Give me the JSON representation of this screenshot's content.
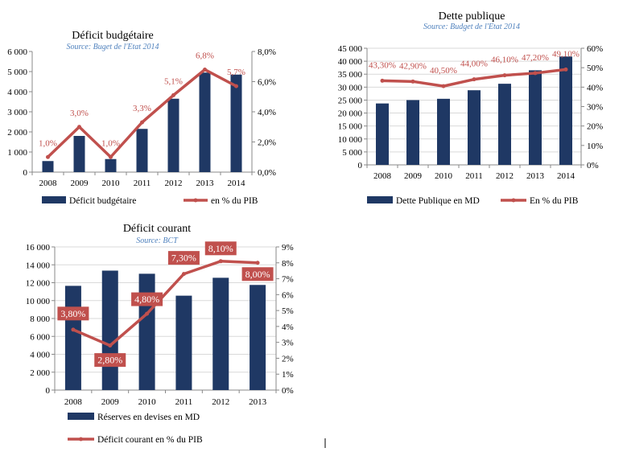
{
  "colors": {
    "bar": "#1f3864",
    "line": "#c0504d",
    "source": "#4f81bd",
    "box": "#c0504d"
  },
  "chart_data": [
    {
      "type": "bar",
      "title": "Déficit budgétaire",
      "source": "Source: Buget de l'Etat 2014",
      "categories": [
        "2008",
        "2009",
        "2010",
        "2011",
        "2012",
        "2013",
        "2014"
      ],
      "ylim": [
        0,
        6000
      ],
      "yticks": [
        "0",
        "1 000",
        "2 000",
        "3 000",
        "4 000",
        "5 000",
        "6 000"
      ],
      "y2lim": [
        0,
        8
      ],
      "y2ticks": [
        "0,0%",
        "2,0%",
        "4,0%",
        "6,0%",
        "8,0%"
      ],
      "series": [
        {
          "name": "Déficit budgétaire",
          "type": "bar",
          "values": [
            550,
            1800,
            650,
            2150,
            3650,
            4950,
            4850
          ]
        },
        {
          "name": "en % du PIB",
          "type": "line",
          "axis": "secondary",
          "values": [
            1.0,
            3.0,
            1.0,
            3.3,
            5.1,
            6.8,
            5.7
          ],
          "labels": [
            "1,0%",
            "3,0%",
            "1,0%",
            "3,3%",
            "5,1%",
            "6,8%",
            "5,7%"
          ]
        }
      ],
      "legend": "bottom",
      "grid": false
    },
    {
      "type": "bar",
      "title": "Dette publique",
      "source": "Source: Budget de l'Etat 2014",
      "categories": [
        "2008",
        "2009",
        "2010",
        "2011",
        "2012",
        "2013",
        "2014"
      ],
      "ylim": [
        0,
        45000
      ],
      "yticks": [
        "0",
        "5 000",
        "10 000",
        "15 000",
        "20 000",
        "25 000",
        "30 000",
        "35 000",
        "40 000",
        "45 000"
      ],
      "y2lim": [
        0,
        60
      ],
      "y2ticks": [
        "0%",
        "10%",
        "20%",
        "30%",
        "40%",
        "50%",
        "60%"
      ],
      "series": [
        {
          "name": "Dette Publique en MD",
          "type": "bar",
          "values": [
            23700,
            25000,
            25500,
            28800,
            31300,
            36500,
            41800
          ]
        },
        {
          "name": "En % du PIB",
          "type": "line",
          "axis": "secondary",
          "values": [
            43.3,
            42.9,
            40.5,
            44.0,
            46.1,
            47.2,
            49.1
          ],
          "labels": [
            "43,30%",
            "42,90%",
            "40,50%",
            "44,00%",
            "46,10%",
            "47,20%",
            "49,10%"
          ]
        }
      ],
      "legend": "bottom",
      "grid": true
    },
    {
      "type": "bar",
      "title": "Déficit courant",
      "source": "Source: BCT",
      "categories": [
        "2008",
        "2009",
        "2010",
        "2011",
        "2012",
        "2013"
      ],
      "ylim": [
        0,
        16000
      ],
      "yticks": [
        "0",
        "2 000",
        "4 000",
        "6 000",
        "8 000",
        "10 000",
        "12 000",
        "14 000",
        "16 000"
      ],
      "y2lim": [
        0,
        9
      ],
      "y2ticks": [
        "0%",
        "1%",
        "2%",
        "3%",
        "4%",
        "5%",
        "6%",
        "7%",
        "8%",
        "9%"
      ],
      "series": [
        {
          "name": "Réserves en devises en MD",
          "type": "bar",
          "values": [
            11650,
            13350,
            13000,
            10550,
            12550,
            11750
          ]
        },
        {
          "name": "Déficit courant en % du PIB",
          "type": "line",
          "axis": "secondary",
          "values": [
            3.8,
            2.8,
            4.8,
            7.3,
            8.1,
            8.0
          ],
          "labels": [
            "3,80%",
            "2,80%",
            "4,80%",
            "7,30%",
            "8,10%",
            "8,00%"
          ]
        }
      ],
      "legend": "bottom",
      "grid": true
    }
  ]
}
